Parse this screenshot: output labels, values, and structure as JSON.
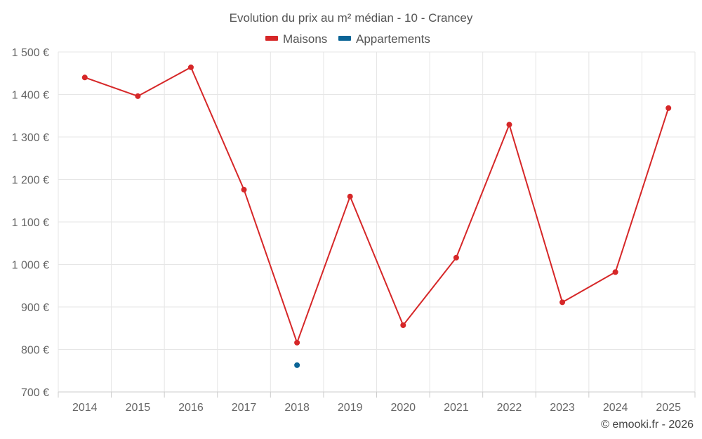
{
  "chart_data": {
    "type": "line",
    "title": "Evolution du prix au m² médian - 10 - Crancey",
    "xlabel": "",
    "ylabel": "",
    "categories": [
      "2014",
      "2015",
      "2016",
      "2017",
      "2018",
      "2019",
      "2020",
      "2021",
      "2022",
      "2023",
      "2024",
      "2025"
    ],
    "ylim": [
      700,
      1500
    ],
    "yticks": [
      700,
      800,
      900,
      1000,
      1100,
      1200,
      1300,
      1400,
      1500
    ],
    "ytick_labels": [
      "700 €",
      "800 €",
      "900 €",
      "1 000 €",
      "1 100 €",
      "1 200 €",
      "1 300 €",
      "1 400 €",
      "1 500 €"
    ],
    "grid": true,
    "legend_position": "top-center",
    "series": [
      {
        "name": "Maisons",
        "color": "#d62728",
        "values": [
          1440,
          1396,
          1464,
          1176,
          816,
          1160,
          857,
          1016,
          1329,
          911,
          982,
          1368
        ]
      },
      {
        "name": "Appartements",
        "color": "#0a6496",
        "values": [
          null,
          null,
          null,
          null,
          763,
          null,
          null,
          null,
          null,
          null,
          null,
          null
        ]
      }
    ],
    "credit": "© emooki.fr - 2026"
  }
}
